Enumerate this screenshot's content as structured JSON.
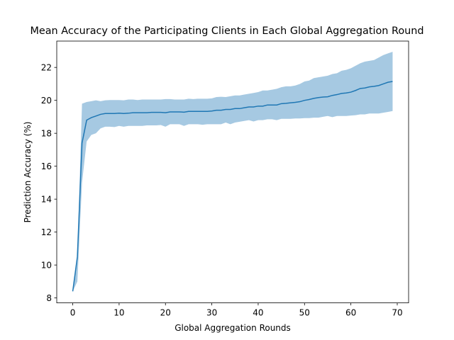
{
  "chart_data": {
    "type": "line",
    "title": "Mean Accuracy of the Participating Clients in Each Global Aggregation Round",
    "xlabel": "Global Aggregation Rounds",
    "ylabel": "Prediction Accuracy (%)",
    "xlim": [
      -3.45,
      72.45
    ],
    "ylim": [
      7.7,
      23.6
    ],
    "xticks": [
      0,
      10,
      20,
      30,
      40,
      50,
      60,
      70
    ],
    "yticks": [
      8,
      10,
      12,
      14,
      16,
      18,
      20,
      22
    ],
    "grid": false,
    "legend": "none",
    "colors": {
      "line": "#1f77b4",
      "band": "#a6c9e2"
    },
    "x": [
      0,
      1,
      2,
      3,
      4,
      5,
      6,
      7,
      8,
      9,
      10,
      11,
      12,
      13,
      14,
      15,
      16,
      17,
      18,
      19,
      20,
      21,
      22,
      23,
      24,
      25,
      26,
      27,
      28,
      29,
      30,
      31,
      32,
      33,
      34,
      35,
      36,
      37,
      38,
      39,
      40,
      41,
      42,
      43,
      44,
      45,
      46,
      47,
      48,
      49,
      50,
      51,
      52,
      53,
      54,
      55,
      56,
      57,
      58,
      59,
      60,
      61,
      62,
      63,
      64,
      65,
      66,
      67,
      68,
      69
    ],
    "series": [
      {
        "role": "mean",
        "values": [
          8.4,
          10.5,
          17.4,
          18.8,
          18.95,
          19.05,
          19.15,
          19.2,
          19.2,
          19.2,
          19.22,
          19.2,
          19.22,
          19.25,
          19.25,
          19.25,
          19.25,
          19.27,
          19.27,
          19.27,
          19.25,
          19.3,
          19.3,
          19.3,
          19.28,
          19.33,
          19.33,
          19.33,
          19.33,
          19.33,
          19.35,
          19.4,
          19.4,
          19.45,
          19.45,
          19.5,
          19.5,
          19.55,
          19.6,
          19.6,
          19.65,
          19.65,
          19.72,
          19.72,
          19.72,
          19.8,
          19.82,
          19.85,
          19.88,
          19.92,
          20.0,
          20.05,
          20.12,
          20.17,
          20.2,
          20.22,
          20.3,
          20.35,
          20.42,
          20.45,
          20.5,
          20.6,
          20.72,
          20.75,
          20.82,
          20.85,
          20.9,
          21.0,
          21.1,
          21.15
        ]
      },
      {
        "role": "upper",
        "values": [
          8.55,
          10.6,
          19.8,
          19.9,
          19.95,
          20.0,
          19.95,
          20.0,
          20.02,
          20.02,
          20.02,
          20.0,
          20.05,
          20.05,
          20.02,
          20.05,
          20.05,
          20.05,
          20.05,
          20.05,
          20.08,
          20.08,
          20.05,
          20.05,
          20.05,
          20.1,
          20.08,
          20.1,
          20.1,
          20.1,
          20.12,
          20.2,
          20.22,
          20.2,
          20.25,
          20.3,
          20.3,
          20.35,
          20.4,
          20.45,
          20.5,
          20.6,
          20.6,
          20.65,
          20.7,
          20.8,
          20.85,
          20.85,
          20.9,
          21.0,
          21.15,
          21.2,
          21.35,
          21.4,
          21.45,
          21.5,
          21.6,
          21.65,
          21.8,
          21.85,
          21.95,
          22.1,
          22.25,
          22.35,
          22.4,
          22.45,
          22.6,
          22.75,
          22.85,
          22.95
        ]
      },
      {
        "role": "lower",
        "values": [
          8.4,
          9.0,
          15.0,
          17.5,
          17.9,
          18.0,
          18.3,
          18.4,
          18.4,
          18.38,
          18.45,
          18.4,
          18.45,
          18.45,
          18.45,
          18.45,
          18.48,
          18.48,
          18.48,
          18.5,
          18.4,
          18.55,
          18.55,
          18.55,
          18.45,
          18.55,
          18.55,
          18.55,
          18.52,
          18.55,
          18.55,
          18.55,
          18.55,
          18.65,
          18.55,
          18.65,
          18.7,
          18.75,
          18.8,
          18.72,
          18.8,
          18.8,
          18.85,
          18.85,
          18.8,
          18.88,
          18.88,
          18.88,
          18.9,
          18.9,
          18.92,
          18.92,
          18.95,
          18.95,
          19.0,
          19.05,
          18.98,
          19.05,
          19.05,
          19.05,
          19.08,
          19.1,
          19.15,
          19.15,
          19.2,
          19.2,
          19.2,
          19.25,
          19.3,
          19.35
        ]
      }
    ]
  }
}
